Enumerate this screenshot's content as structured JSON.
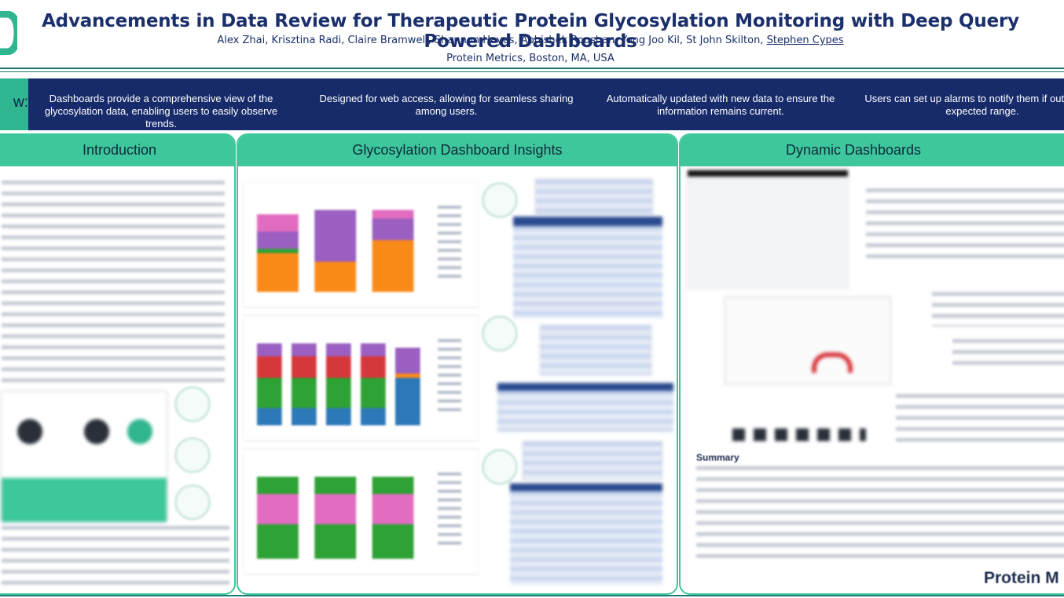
{
  "header": {
    "title": "Advancements in Data Review for Therapeutic Protein Glycosylation Monitoring with Deep Query Powered Dashboards",
    "authors": "Alex Zhai, Krisztina Radi, Claire Bramwell, Shannon Hayes, Abhishek Roushan, Yong Joo Kil, St John Skilton, ",
    "presenting_author": "Stephen Cypes",
    "affiliation": "Protein Metrics, Boston, MA, USA"
  },
  "overview": {
    "label": "w:",
    "items": [
      "Dashboards provide a comprehensive view of the glycosylation data, enabling users to easily observe trends.",
      "Designed for web access, allowing for seamless sharing among users.",
      "Automatically updated with new data to ensure the information remains current.",
      "Users can set up alarms to notify them if outside the expected range."
    ]
  },
  "panels": {
    "introduction": "Introduction",
    "insights": "Glycosylation Dashboard Insights",
    "dynamic": "Dynamic Dashboards"
  },
  "dynamic_summary_heading": "Summary",
  "logo_text": "Protein M",
  "colors": {
    "navy": "#172a6a",
    "teal": "#3ec79c",
    "title": "#1a2f6b",
    "bar_orange": "#f98a1a",
    "bar_purple": "#9a5fc0",
    "bar_pink": "#e26dc0",
    "bar_green": "#2ea235",
    "bar_red": "#d6373b",
    "bar_blue": "#2c78b8"
  }
}
